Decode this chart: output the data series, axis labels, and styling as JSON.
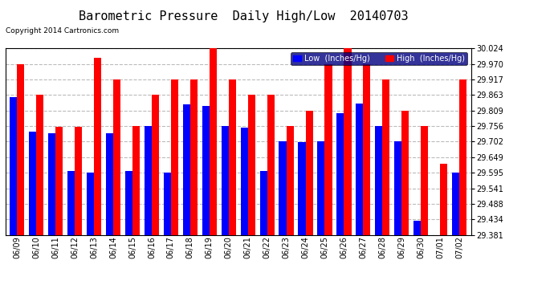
{
  "title": "Barometric Pressure  Daily High/Low  20140703",
  "copyright": "Copyright 2014 Cartronics.com",
  "legend_low": "Low  (Inches/Hg)",
  "legend_high": "High  (Inches/Hg)",
  "dates": [
    "06/09",
    "06/10",
    "06/11",
    "06/12",
    "06/13",
    "06/14",
    "06/15",
    "06/16",
    "06/17",
    "06/18",
    "06/19",
    "06/20",
    "06/21",
    "06/22",
    "06/23",
    "06/24",
    "06/25",
    "06/26",
    "06/27",
    "06/28",
    "06/29",
    "06/30",
    "07/01",
    "07/02"
  ],
  "low_values": [
    29.856,
    29.737,
    29.73,
    29.6,
    29.595,
    29.73,
    29.6,
    29.755,
    29.595,
    29.83,
    29.826,
    29.756,
    29.75,
    29.6,
    29.703,
    29.7,
    29.703,
    29.8,
    29.833,
    29.756,
    29.703,
    29.43,
    29.381,
    29.595
  ],
  "high_values": [
    29.97,
    29.863,
    29.752,
    29.752,
    29.99,
    29.917,
    29.756,
    29.863,
    29.917,
    29.917,
    30.024,
    29.917,
    29.863,
    29.863,
    29.756,
    29.809,
    29.97,
    30.024,
    29.97,
    29.917,
    29.809,
    29.756,
    29.625,
    29.917
  ],
  "low_color": "#0000ff",
  "high_color": "#ff0000",
  "background_color": "#ffffff",
  "grid_color": "#aaaaaa",
  "ylim_min": 29.381,
  "ylim_max": 30.024,
  "yticks": [
    29.381,
    29.434,
    29.488,
    29.541,
    29.595,
    29.649,
    29.702,
    29.756,
    29.809,
    29.863,
    29.917,
    29.97,
    30.024
  ],
  "title_fontsize": 11,
  "tick_fontsize": 7,
  "legend_fontsize": 7,
  "copyright_fontsize": 6.5,
  "bar_width": 0.38
}
